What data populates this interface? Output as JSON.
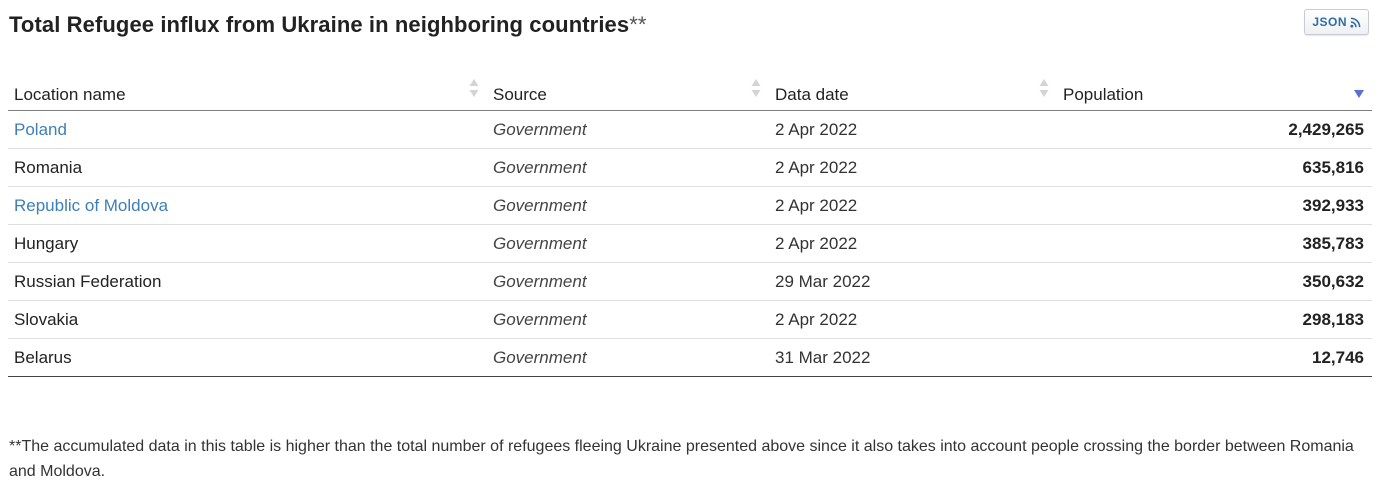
{
  "header": {
    "title": "Total Refugee influx from Ukraine in neighboring countries",
    "title_suffix": "**",
    "json_button_label": "JSON",
    "json_button_icon": "rss-feed-icon"
  },
  "table": {
    "columns": [
      {
        "label": "Location name",
        "sort_state": "unsorted"
      },
      {
        "label": "Source",
        "sort_state": "unsorted"
      },
      {
        "label": "Data date",
        "sort_state": "unsorted"
      },
      {
        "label": "Population",
        "sort_state": "descending"
      }
    ],
    "rows": [
      {
        "location": "Poland",
        "is_link": true,
        "source": "Government",
        "date": "2 Apr 2022",
        "population": "2,429,265"
      },
      {
        "location": "Romania",
        "is_link": false,
        "source": "Government",
        "date": "2 Apr 2022",
        "population": "635,816"
      },
      {
        "location": "Republic of Moldova",
        "is_link": true,
        "source": "Government",
        "date": "2 Apr 2022",
        "population": "392,933"
      },
      {
        "location": "Hungary",
        "is_link": false,
        "source": "Government",
        "date": "2 Apr 2022",
        "population": "385,783"
      },
      {
        "location": "Russian Federation",
        "is_link": false,
        "source": "Government",
        "date": "29 Mar 2022",
        "population": "350,632"
      },
      {
        "location": "Slovakia",
        "is_link": false,
        "source": "Government",
        "date": "2 Apr 2022",
        "population": "298,183"
      },
      {
        "location": "Belarus",
        "is_link": false,
        "source": "Government",
        "date": "31 Mar 2022",
        "population": "12,746"
      }
    ]
  },
  "footnote": "**The accumulated data in this table is higher than the total number of refugees fleeing Ukraine presented above since it also takes into account people crossing the border between Romania and Moldova.",
  "colors": {
    "link": "#3d7fb6",
    "sort_active": "#5b6fd6",
    "sort_inactive": "#d4d4d4"
  }
}
